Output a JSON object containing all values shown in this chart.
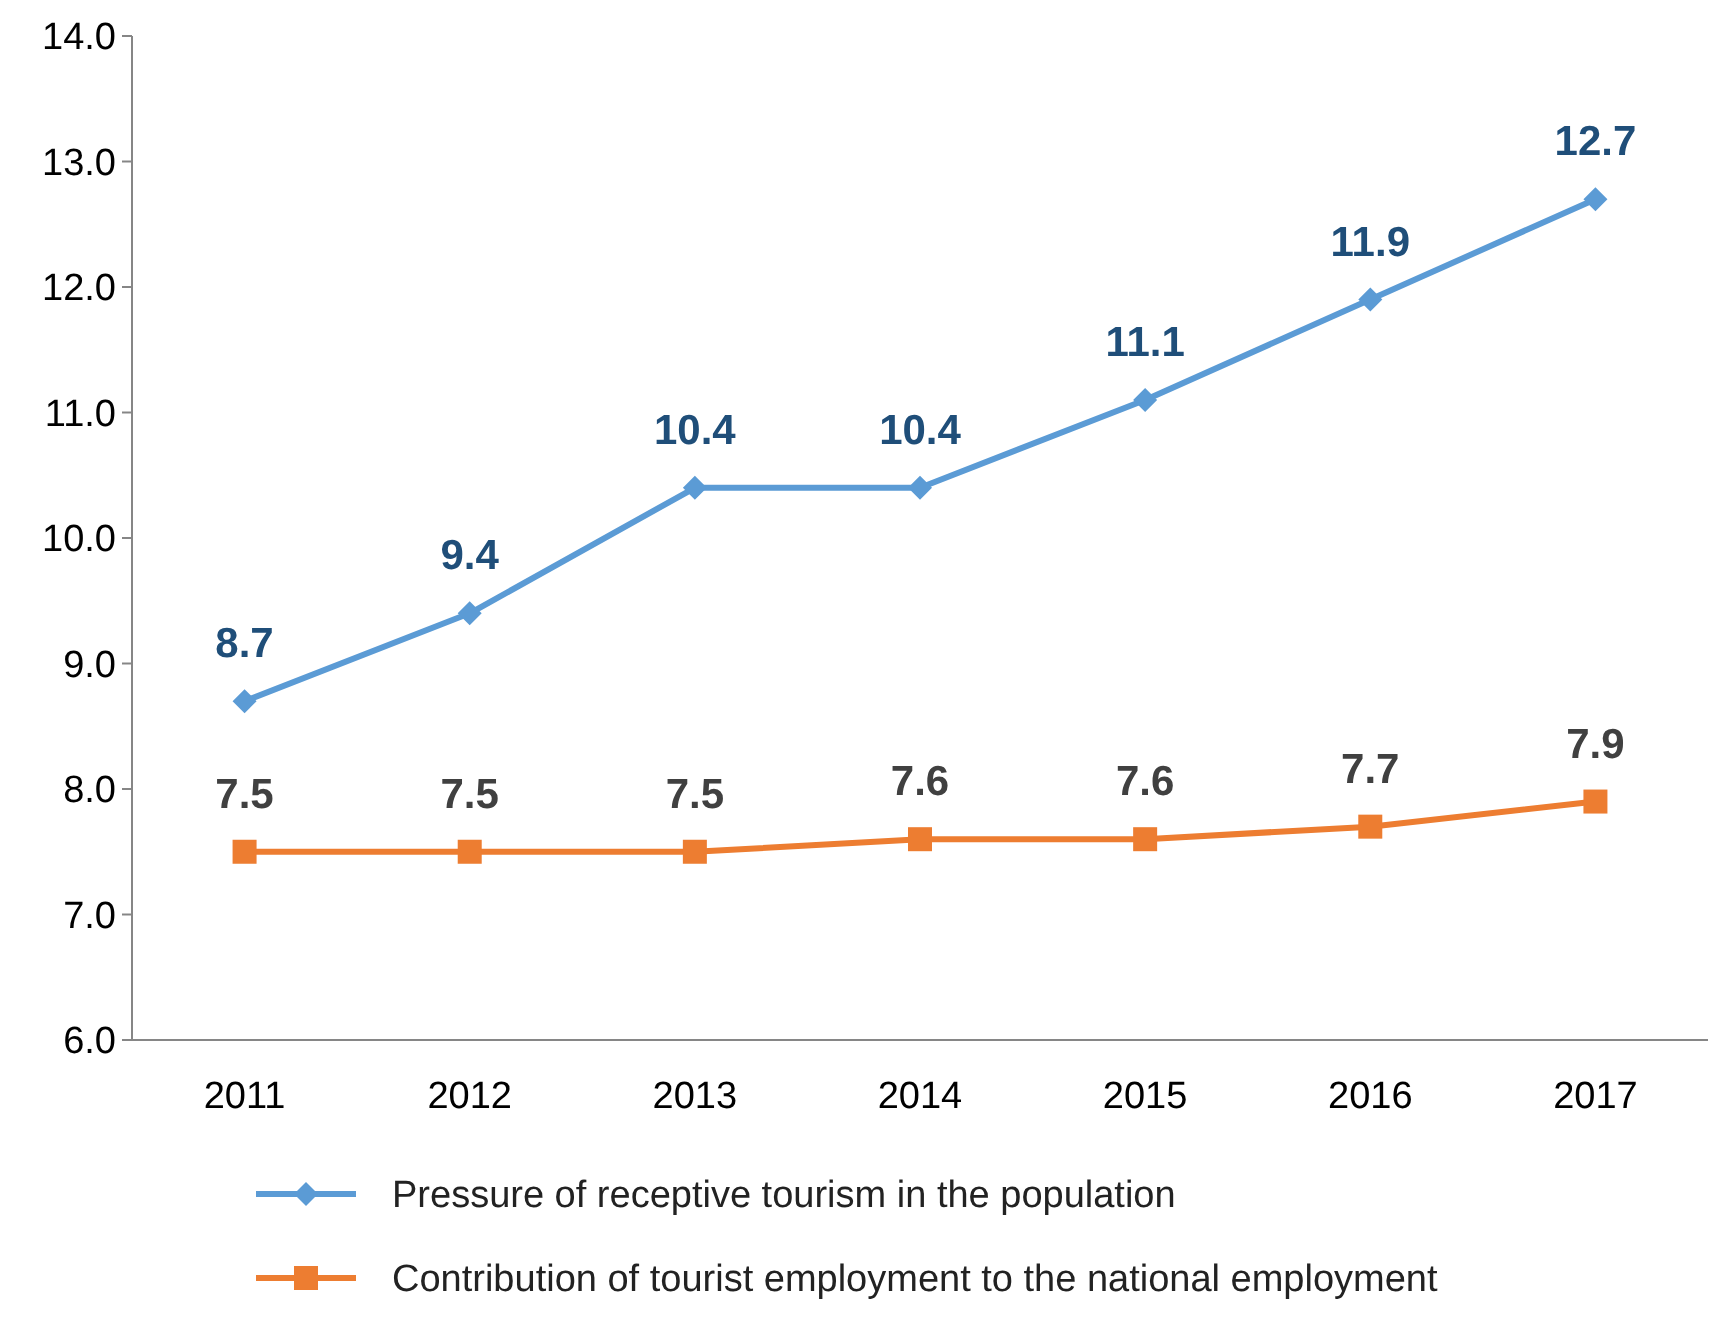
{
  "chart_data": {
    "type": "line",
    "categories": [
      "2011",
      "2012",
      "2013",
      "2014",
      "2015",
      "2016",
      "2017"
    ],
    "series": [
      {
        "name": "Pressure of receptive tourism in the population",
        "color": "#5b9bd5",
        "marker": "diamond",
        "values": [
          8.7,
          9.4,
          10.4,
          10.4,
          11.1,
          11.9,
          12.7
        ]
      },
      {
        "name": "Contribution of tourist employment to the national employment",
        "color": "#ed7d31",
        "marker": "square",
        "values": [
          7.5,
          7.5,
          7.5,
          7.6,
          7.6,
          7.7,
          7.9
        ]
      }
    ],
    "ylim": [
      6,
      14
    ],
    "yticks": [
      {
        "value": 6,
        "label": "6.0"
      },
      {
        "value": 7,
        "label": "7.0"
      },
      {
        "value": 8,
        "label": "8.0"
      },
      {
        "value": 9,
        "label": "9.0"
      },
      {
        "value": 10,
        "label": "10.0"
      },
      {
        "value": 11,
        "label": "11.0"
      },
      {
        "value": 12,
        "label": "12.0"
      },
      {
        "value": 13,
        "label": "13.0"
      },
      {
        "value": 14,
        "label": "14.0"
      }
    ],
    "data_labels": true,
    "grid": false,
    "legend": "bottom"
  }
}
